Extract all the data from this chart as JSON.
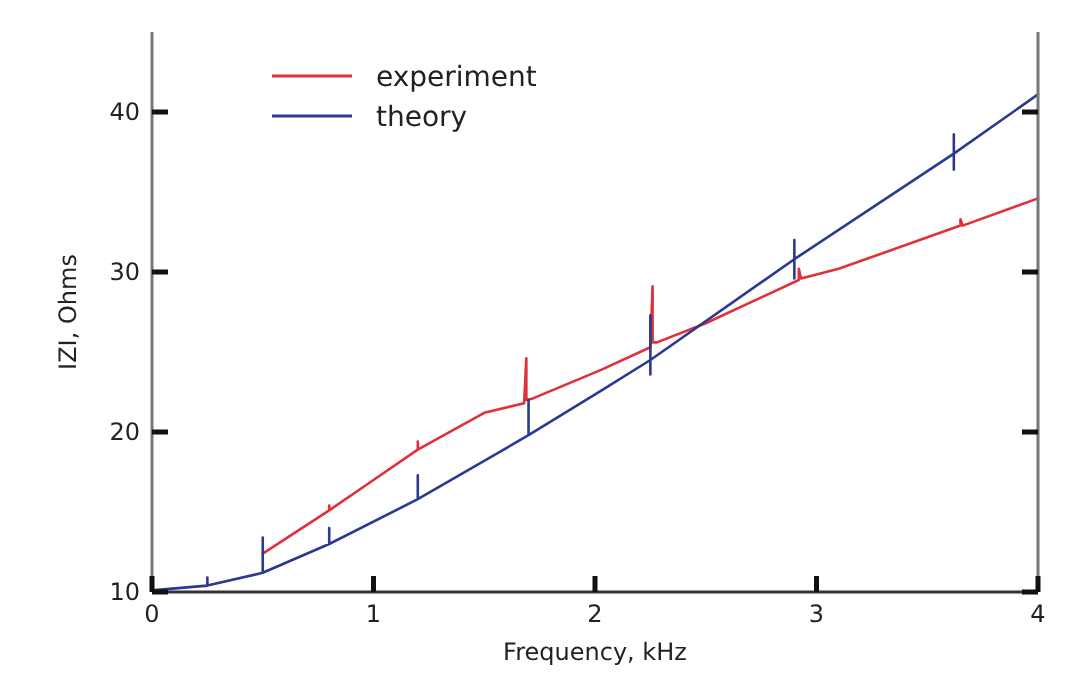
{
  "chart_data": {
    "type": "line",
    "xlabel": "Frequency, kHz",
    "ylabel": "IZI, Ohms",
    "xlim": [
      0,
      4
    ],
    "xticks": [
      0,
      1,
      2,
      3,
      4
    ],
    "ylim": [
      10,
      45
    ],
    "yticks": [
      10,
      20,
      30,
      40
    ],
    "grid": false,
    "legend": "top left",
    "marker": "none",
    "line_style": "solid",
    "series": [
      {
        "name": "experiment",
        "color": "#e0303a",
        "x": [
          0.5,
          0.8,
          0.8,
          0.8,
          1.0,
          1.2,
          1.2,
          1.2,
          1.5,
          1.68,
          1.69,
          1.69,
          1.72,
          2.03,
          2.25,
          2.26,
          2.26,
          2.28,
          2.5,
          2.92,
          2.92,
          2.93,
          3.1,
          3.65,
          3.65,
          3.66,
          4.0
        ],
        "values": [
          12.4,
          15.1,
          15.4,
          15.1,
          17.0,
          18.9,
          19.4,
          18.9,
          21.2,
          21.8,
          24.6,
          22.0,
          22.1,
          23.9,
          25.3,
          29.1,
          25.6,
          25.6,
          26.8,
          29.5,
          30.2,
          29.6,
          30.2,
          32.9,
          33.3,
          32.9,
          34.6
        ]
      },
      {
        "name": "theory",
        "color": "#2b3990",
        "x": [
          0,
          0.25,
          0.25,
          0.25,
          0.5,
          0.5,
          0.5,
          0.8,
          0.8,
          0.8,
          1.2,
          1.2,
          1.2,
          1.7,
          1.7,
          1.7,
          2.03,
          2.25,
          2.25,
          2.25,
          2.25,
          2.9,
          2.9,
          2.9,
          2.9,
          3.62,
          3.62,
          3.62,
          3.62,
          4.0
        ],
        "values": [
          10.1,
          10.4,
          10.9,
          10.4,
          11.2,
          13.4,
          11.2,
          13.0,
          14.0,
          13.0,
          15.8,
          17.3,
          15.8,
          19.8,
          22.0,
          19.8,
          22.6,
          24.5,
          27.3,
          23.6,
          24.5,
          30.8,
          32.0,
          29.6,
          30.8,
          37.4,
          38.6,
          36.4,
          37.4,
          41.1
        ]
      }
    ]
  }
}
